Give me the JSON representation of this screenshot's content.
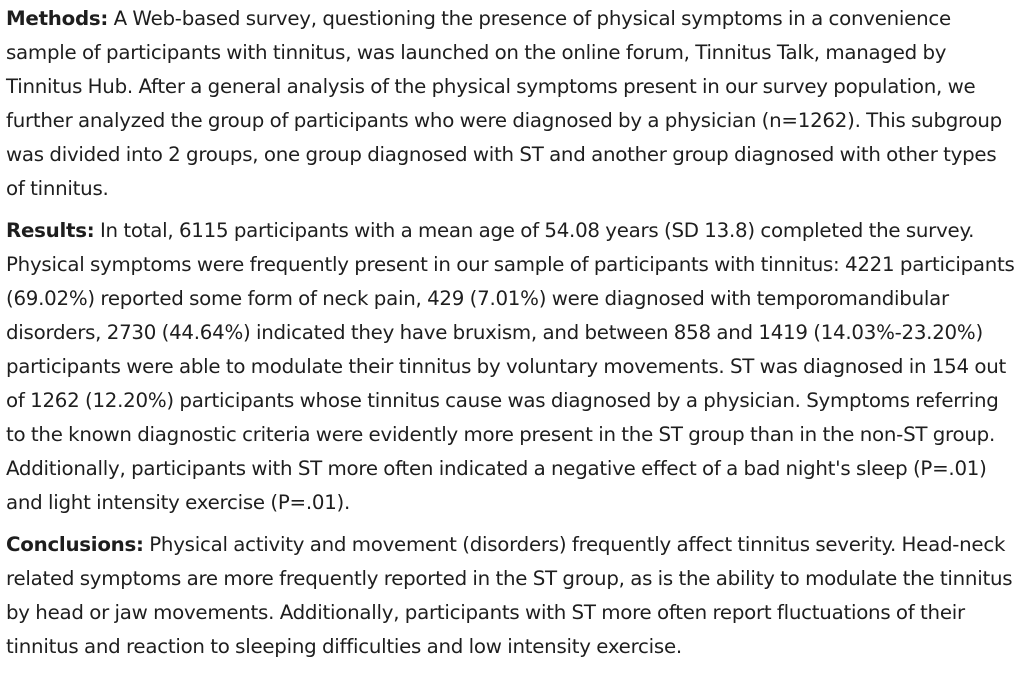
{
  "sections": {
    "methods": {
      "label": "Methods:",
      "text": " A Web-based survey, questioning the presence of physical symptoms in a convenience sample of participants with tinnitus, was launched on the online forum, Tinnitus Talk, managed by Tinnitus Hub. After a general analysis of the physical symptoms present in our survey population, we further analyzed the group of participants who were diagnosed by a physician (n=1262). This subgroup was divided into 2 groups, one group diagnosed with ST and another group diagnosed with other types of tinnitus."
    },
    "results": {
      "label": "Results:",
      "text": " In total, 6115 participants with a mean age of 54.08 years (SD 13.8) completed the survey. Physical symptoms were frequently present in our sample of participants with tinnitus: 4221 participants (69.02%) reported some form of neck pain, 429 (7.01%) were diagnosed with temporomandibular disorders, 2730 (44.64%) indicated they have bruxism, and between 858 and 1419 (14.03%-23.20%) participants were able to modulate their tinnitus by voluntary movements. ST was diagnosed in 154 out of 1262 (12.20%) participants whose tinnitus cause was diagnosed by a physician. Symptoms referring to the known diagnostic criteria were evidently more present in the ST group than in the non-ST group. Additionally, participants with ST more often indicated a negative effect of a bad night's sleep (P=.01) and light intensity exercise (P=.01)."
    },
    "conclusions": {
      "label": "Conclusions:",
      "text": " Physical activity and movement (disorders) frequently affect tinnitus severity. Head-neck related symptoms are more frequently reported in the ST group, as is the ability to modulate the tinnitus by head or jaw movements. Additionally, participants with ST more often report fluctuations of their tinnitus and reaction to sleeping difficulties and low intensity exercise."
    }
  }
}
